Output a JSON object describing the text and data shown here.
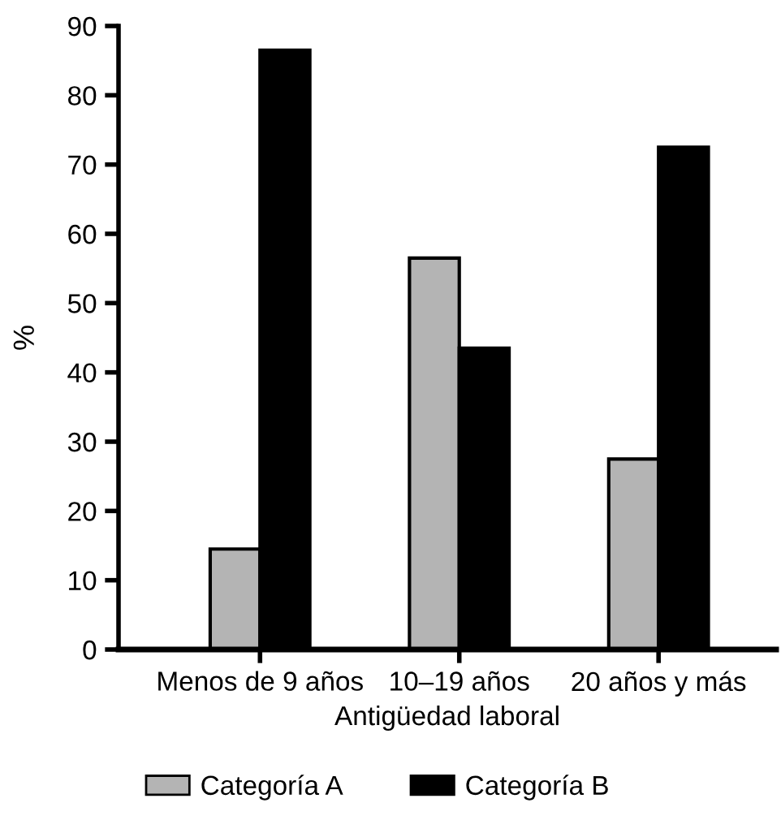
{
  "chart_data": {
    "type": "bar",
    "xlabel": "Antigüedad laboral",
    "ylabel": "%",
    "categories": [
      "Menos de 9 años",
      "10–19 años",
      "20 años y más"
    ],
    "series": [
      {
        "name": "Categoría A",
        "color": "#b4b4b4",
        "values": [
          14.5,
          56.5,
          27.5
        ]
      },
      {
        "name": "Categoría B",
        "color": "#000000",
        "values": [
          86.5,
          43.5,
          72.5
        ]
      }
    ],
    "ylim": [
      0,
      90
    ],
    "yticks": [
      0,
      10,
      20,
      30,
      40,
      50,
      60,
      70,
      80,
      90
    ],
    "grid": false,
    "legend": "bottom"
  }
}
